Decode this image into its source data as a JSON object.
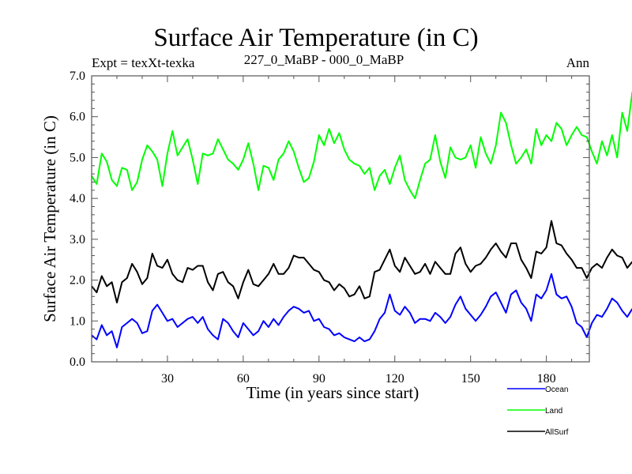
{
  "header": {
    "title": "Surface Air Temperature (in C)",
    "experiment": "Expt = texXt-texka",
    "comparison": "227_0_MaBP - 000_0_MaBP",
    "season": "Ann"
  },
  "chart_data": {
    "type": "line",
    "title": "Surface Air Temperature (in C)",
    "subtitle_left": "Expt = texXt-texka",
    "subtitle_center": "227_0_MaBP - 000_0_MaBP",
    "subtitle_right": "Ann",
    "xlabel": "Time (in years since start)",
    "ylabel": "Surface Air Temperature (in C)",
    "xlim": [
      0,
      197
    ],
    "ylim": [
      0.0,
      7.0
    ],
    "xticks": [
      30,
      60,
      90,
      120,
      150,
      180
    ],
    "xtick_labels": [
      "30",
      "60",
      "90",
      "120",
      "150",
      "180"
    ],
    "yticks": [
      0.0,
      1.0,
      2.0,
      3.0,
      4.0,
      5.0,
      6.0,
      7.0
    ],
    "ytick_labels": [
      "0.0",
      "1.0",
      "2.0",
      "3.0",
      "4.0",
      "5.0",
      "6.0",
      "7.0"
    ],
    "grid": false,
    "legend_position": "bottom-right, below plot",
    "x_step": 2,
    "x_start": 0,
    "series": [
      {
        "name": "Ocean",
        "color": "#0000ff",
        "values": [
          0.65,
          0.55,
          0.9,
          0.65,
          0.75,
          0.35,
          0.85,
          0.95,
          1.05,
          0.95,
          0.7,
          0.75,
          1.25,
          1.4,
          1.2,
          1.0,
          1.05,
          0.85,
          0.95,
          1.05,
          1.1,
          0.95,
          1.1,
          0.8,
          0.65,
          0.55,
          1.05,
          0.95,
          0.75,
          0.6,
          0.95,
          0.8,
          0.65,
          0.75,
          1.0,
          0.85,
          1.05,
          0.9,
          1.1,
          1.25,
          1.35,
          1.3,
          1.2,
          1.25,
          1.0,
          1.05,
          0.85,
          0.8,
          0.65,
          0.7,
          0.6,
          0.55,
          0.5,
          0.6,
          0.5,
          0.55,
          0.75,
          1.05,
          1.2,
          1.65,
          1.25,
          1.15,
          1.35,
          1.2,
          0.95,
          1.05,
          1.05,
          1.0,
          1.2,
          1.1,
          0.95,
          1.1,
          1.4,
          1.6,
          1.3,
          1.15,
          1.0,
          1.15,
          1.35,
          1.6,
          1.7,
          1.45,
          1.2,
          1.65,
          1.75,
          1.45,
          1.3,
          1.0,
          1.65,
          1.55,
          1.75,
          2.15,
          1.65,
          1.55,
          1.6,
          1.35,
          0.95,
          0.85,
          0.6,
          0.95,
          1.15,
          1.1,
          1.3,
          1.55,
          1.45,
          1.25,
          1.1,
          1.3
        ]
      },
      {
        "name": "Land",
        "color": "#00ff00",
        "values": [
          4.55,
          4.35,
          5.1,
          4.9,
          4.45,
          4.3,
          4.75,
          4.7,
          4.2,
          4.4,
          4.95,
          5.3,
          5.15,
          4.95,
          4.3,
          5.1,
          5.65,
          5.05,
          5.25,
          5.45,
          4.95,
          4.35,
          5.1,
          5.05,
          5.1,
          5.45,
          5.2,
          4.95,
          4.85,
          4.7,
          4.95,
          5.35,
          4.85,
          4.2,
          4.8,
          4.75,
          4.45,
          4.95,
          5.1,
          5.4,
          5.15,
          4.75,
          4.4,
          4.5,
          4.9,
          5.55,
          5.3,
          5.7,
          5.35,
          5.6,
          5.2,
          4.95,
          4.85,
          4.8,
          4.6,
          4.75,
          4.2,
          4.55,
          4.7,
          4.35,
          4.75,
          5.05,
          4.45,
          4.2,
          4.0,
          4.45,
          4.85,
          4.95,
          5.55,
          4.9,
          4.5,
          5.25,
          5.0,
          4.95,
          5.0,
          5.3,
          4.75,
          5.5,
          5.1,
          4.85,
          5.3,
          6.1,
          5.85,
          5.3,
          4.85,
          5.0,
          5.2,
          4.85,
          5.7,
          5.3,
          5.55,
          5.4,
          5.85,
          5.7,
          5.3,
          5.55,
          5.75,
          5.55,
          5.5,
          5.15,
          4.85,
          5.4,
          5.05,
          5.55,
          5.0,
          6.1,
          5.65,
          6.6,
          5.85,
          5.3,
          5.15,
          4.95,
          5.95,
          5.5,
          5.15,
          4.9,
          4.75,
          5.05,
          4.95,
          4.65,
          4.85,
          4.95,
          5.4,
          5.6,
          5.45,
          5.65,
          5.5,
          5.5,
          5.55,
          5.7,
          5.5,
          5.55,
          5.2,
          5.45
        ]
      },
      {
        "name": "AllSurf",
        "color": "#000000",
        "values": [
          1.85,
          1.7,
          2.1,
          1.85,
          1.95,
          1.45,
          1.95,
          2.05,
          2.4,
          2.2,
          1.9,
          2.05,
          2.65,
          2.35,
          2.3,
          2.5,
          2.15,
          2.0,
          1.95,
          2.3,
          2.25,
          2.35,
          2.35,
          1.95,
          1.75,
          2.15,
          2.2,
          1.95,
          1.85,
          1.55,
          1.95,
          2.25,
          1.9,
          1.85,
          2.0,
          2.15,
          2.4,
          2.15,
          2.15,
          2.3,
          2.6,
          2.55,
          2.55,
          2.4,
          2.25,
          2.2,
          2.0,
          1.95,
          1.75,
          1.9,
          1.8,
          1.6,
          1.65,
          1.85,
          1.55,
          1.6,
          2.2,
          2.25,
          2.5,
          2.75,
          2.35,
          2.2,
          2.55,
          2.35,
          2.15,
          2.2,
          2.4,
          2.15,
          2.45,
          2.3,
          2.15,
          2.15,
          2.65,
          2.8,
          2.4,
          2.2,
          2.35,
          2.4,
          2.55,
          2.75,
          2.9,
          2.7,
          2.55,
          2.9,
          2.9,
          2.5,
          2.3,
          2.05,
          2.7,
          2.65,
          2.8,
          3.45,
          2.9,
          2.85,
          2.65,
          2.5,
          2.3,
          2.3,
          2.05,
          2.3,
          2.4,
          2.3,
          2.55,
          2.75,
          2.6,
          2.55,
          2.3,
          2.45
        ]
      }
    ]
  },
  "legend": {
    "items": [
      {
        "label": "Ocean",
        "color": "#0000ff"
      },
      {
        "label": "Land",
        "color": "#00ff00"
      },
      {
        "label": "AllSurf",
        "color": "#000000"
      }
    ]
  }
}
